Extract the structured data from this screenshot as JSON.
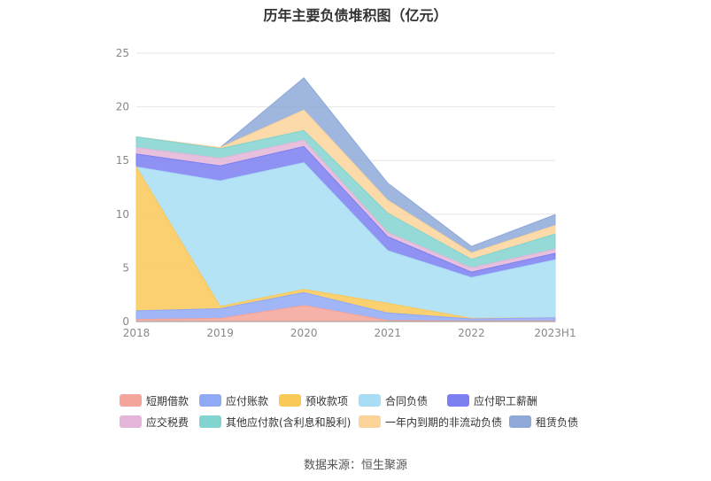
{
  "title": "历年主要负债堆积图（亿元）",
  "source": "数据来源：恒生聚源",
  "chart_data": {
    "type": "area",
    "stacked": true,
    "categories": [
      "2018",
      "2019",
      "2020",
      "2021",
      "2022",
      "2023H1"
    ],
    "ylim": [
      0,
      25
    ],
    "yticks": [
      0,
      5,
      10,
      15,
      20,
      25
    ],
    "grid": true,
    "legend_position": "bottom",
    "series": [
      {
        "name": "短期借款",
        "color": "#f4a49a",
        "values": [
          0.2,
          0.3,
          1.5,
          0.1,
          0.05,
          0.05
        ]
      },
      {
        "name": "应付账款",
        "color": "#8fa9f5",
        "values": [
          0.8,
          0.9,
          1.2,
          0.7,
          0.2,
          0.3
        ]
      },
      {
        "name": "预收款项",
        "color": "#fac858",
        "values": [
          13.4,
          0.2,
          0.3,
          0.9,
          0.05,
          0.0
        ]
      },
      {
        "name": "合同负债",
        "color": "#a8def5",
        "values": [
          0.0,
          11.7,
          11.8,
          4.9,
          3.8,
          5.4
        ]
      },
      {
        "name": "应付职工薪酬",
        "color": "#7b7ff0",
        "values": [
          1.2,
          1.4,
          1.5,
          1.3,
          0.5,
          0.6
        ]
      },
      {
        "name": "应交税费",
        "color": "#e3b5d8",
        "values": [
          0.6,
          0.7,
          0.6,
          0.4,
          0.4,
          0.4
        ]
      },
      {
        "name": "其他应付款(含利息和股利)",
        "color": "#82d4d0",
        "values": [
          1.0,
          0.9,
          0.9,
          1.8,
          0.8,
          1.4
        ]
      },
      {
        "name": "一年内到期的非流动负债",
        "color": "#fcd49a",
        "values": [
          0.0,
          0.1,
          1.9,
          1.2,
          0.6,
          0.8
        ]
      },
      {
        "name": "租赁负债",
        "color": "#8ea9d8",
        "values": [
          0.0,
          0.0,
          3.0,
          1.6,
          0.6,
          1.0
        ]
      }
    ]
  }
}
